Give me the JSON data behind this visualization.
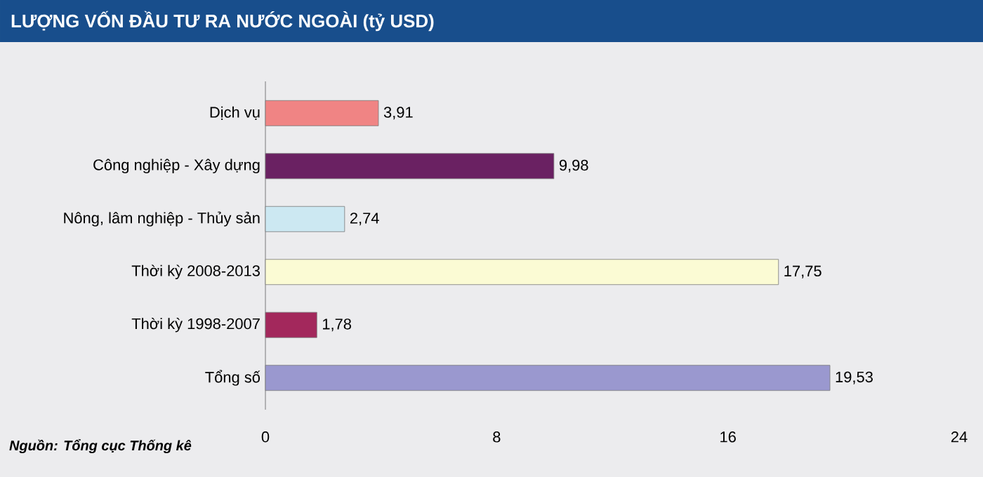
{
  "chart_data": {
    "type": "bar",
    "orientation": "horizontal",
    "title": "LƯỢNG VỐN ĐẦU TƯ RA NƯỚC NGOÀI (tỷ USD)",
    "categories": [
      "Dịch vụ",
      "Công nghiệp - Xây dựng",
      "Nông, lâm nghiệp - Thủy sản",
      "Thời kỳ 2008-2013",
      "Thời kỳ 1998-2007",
      "Tổng số"
    ],
    "values": [
      3.91,
      9.98,
      2.74,
      17.75,
      1.78,
      19.53
    ],
    "colors": [
      "#f08484",
      "#6a2162",
      "#cce8f2",
      "#fbfbd4",
      "#a3285c",
      "#9a98cf"
    ],
    "value_labels": [
      "3,91",
      "9,98",
      "2,74",
      "17,75",
      "1,78",
      "19,53"
    ],
    "xlim": [
      0,
      24
    ],
    "xticks": [
      0,
      8,
      16,
      24
    ],
    "annotations": [
      "Nguồn: Tổng cục Thống kê"
    ]
  }
}
